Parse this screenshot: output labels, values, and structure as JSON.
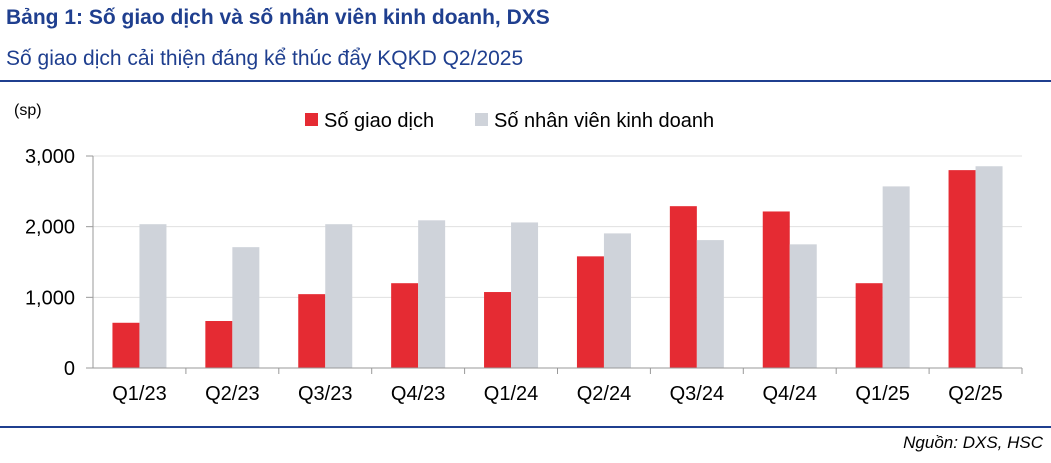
{
  "header": {
    "title": "Bảng 1: Số giao dịch và số nhân viên kinh doanh, DXS",
    "subtitle": "Số giao dịch cải thiện đáng kể thúc đẩy KQKD Q2/2025"
  },
  "footer": {
    "source": "Nguồn: DXS, HSC"
  },
  "chart_data": {
    "type": "bar",
    "unit_label": "(sp)",
    "categories": [
      "Q1/23",
      "Q2/23",
      "Q3/23",
      "Q4/23",
      "Q1/24",
      "Q2/24",
      "Q3/24",
      "Q4/24",
      "Q1/25",
      "Q2/25"
    ],
    "series": [
      {
        "name": "Số giao dịch",
        "color": "#e52b33",
        "values": [
          640,
          665,
          1045,
          1200,
          1075,
          1580,
          2290,
          2215,
          1200,
          2800
        ]
      },
      {
        "name": "Số nhân viên kinh doanh",
        "color": "#cfd3da",
        "values": [
          2035,
          1710,
          2035,
          2090,
          2060,
          1905,
          1810,
          1750,
          2570,
          2855
        ]
      }
    ],
    "yticks": [
      "0",
      "1,000",
      "2,000",
      "3,000"
    ],
    "ylim": [
      0,
      3000
    ],
    "grid": true,
    "legend": "top"
  }
}
